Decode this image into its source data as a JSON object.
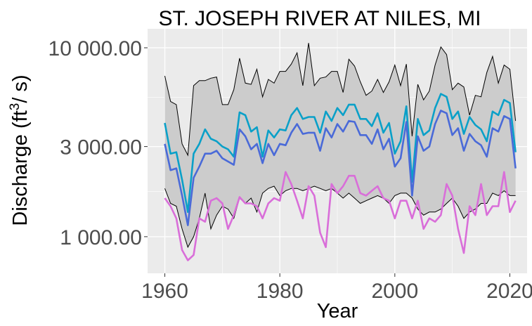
{
  "chart_data": {
    "type": "line",
    "title": "ST. JOSEPH RIVER AT NILES, MI",
    "xlabel": "Year",
    "ylabel_main": "Discharge (ft",
    "ylabel_sup": "3",
    "ylabel_end": "/ s)",
    "y_scale": "log10",
    "xlim": [
      1957,
      2023
    ],
    "ylim": [
      640,
      12600
    ],
    "x_ticks": [
      1960,
      1980,
      2000,
      2020
    ],
    "x_tick_labels": [
      "1960",
      "1980",
      "2000",
      "2020"
    ],
    "y_ticks": [
      1000,
      3000,
      10000
    ],
    "y_tick_labels": [
      "1 000.00",
      "3 000.00",
      "10 000.00"
    ],
    "grid": true,
    "legend": "none",
    "x": [
      1960,
      1961,
      1962,
      1963,
      1964,
      1965,
      1966,
      1967,
      1968,
      1969,
      1970,
      1971,
      1972,
      1973,
      1974,
      1975,
      1976,
      1977,
      1978,
      1979,
      1980,
      1981,
      1982,
      1983,
      1984,
      1985,
      1986,
      1987,
      1988,
      1989,
      1990,
      1991,
      1992,
      1993,
      1994,
      1995,
      1996,
      1997,
      1998,
      1999,
      2000,
      2001,
      2002,
      2003,
      2004,
      2005,
      2006,
      2007,
      2008,
      2009,
      2010,
      2011,
      2012,
      2013,
      2014,
      2015,
      2016,
      2017,
      2018,
      2019,
      2020,
      2021
    ],
    "band": {
      "upper": [
        7100,
        5200,
        5000,
        3100,
        2700,
        6300,
        6700,
        6700,
        6900,
        7000,
        5000,
        5000,
        6000,
        8800,
        6500,
        6400,
        7700,
        5500,
        6800,
        6500,
        7500,
        7500,
        8200,
        9400,
        6300,
        10600,
        6300,
        6900,
        7000,
        7500,
        7500,
        5800,
        8700,
        8000,
        6600,
        5600,
        5900,
        6800,
        5800,
        6600,
        8100,
        6300,
        8200,
        3400,
        6400,
        5300,
        5900,
        8100,
        10100,
        9200,
        6000,
        6500,
        6200,
        4400,
        5600,
        5500,
        7400,
        9000,
        6500,
        8100,
        7700,
        4100
      ],
      "lower": [
        1800,
        1500,
        1450,
        1100,
        880,
        1000,
        1250,
        1700,
        1100,
        1300,
        1450,
        1400,
        1250,
        1600,
        1500,
        1600,
        1350,
        1700,
        1800,
        1850,
        1650,
        1750,
        1800,
        1800,
        1750,
        1800,
        1850,
        1800,
        1750,
        1800,
        1700,
        1600,
        1700,
        1600,
        1500,
        1550,
        1600,
        1650,
        1600,
        1500,
        1650,
        1700,
        1700,
        1600,
        1400,
        1300,
        1350,
        1350,
        1400,
        1500,
        1600,
        1450,
        1250,
        1350,
        1400,
        1500,
        1500,
        1700,
        1650,
        1750,
        1650,
        1650
      ]
    },
    "series": [
      {
        "color": "#0aa0c8",
        "values": [
          4000,
          2750,
          2800,
          2000,
          1350,
          2750,
          3100,
          3700,
          3300,
          3200,
          3000,
          2900,
          2650,
          4550,
          4400,
          3600,
          3800,
          2650,
          3650,
          3350,
          3700,
          3650,
          4400,
          4800,
          4200,
          4300,
          4300,
          3550,
          4600,
          4100,
          4800,
          4400,
          5000,
          5000,
          4200,
          4200,
          3850,
          4500,
          3550,
          4000,
          2750,
          3200,
          4900,
          1950,
          4200,
          3450,
          3650,
          4800,
          5700,
          5500,
          4200,
          4600,
          3500,
          4300,
          3900,
          3700,
          3200,
          4600,
          4400,
          5300,
          5100,
          2800
        ]
      },
      {
        "color": "#4a6ad8",
        "values": [
          3100,
          2250,
          2300,
          1650,
          1150,
          2050,
          2350,
          2750,
          2750,
          2850,
          2600,
          2500,
          2400,
          3700,
          3400,
          2900,
          3100,
          2450,
          3100,
          2700,
          3100,
          3050,
          3550,
          3950,
          3500,
          3550,
          3550,
          2850,
          3750,
          3350,
          3950,
          3600,
          4100,
          4050,
          3450,
          3450,
          3100,
          3700,
          2900,
          3300,
          2350,
          2600,
          4050,
          1650,
          3400,
          2850,
          3000,
          3950,
          4650,
          4500,
          3450,
          3750,
          2850,
          3500,
          3200,
          3050,
          2650,
          3750,
          3600,
          4350,
          4200,
          2300
        ]
      },
      {
        "color": "#d96ed9",
        "values": [
          1600,
          1450,
          1250,
          850,
          750,
          800,
          1250,
          1200,
          1550,
          1600,
          1500,
          1100,
          1300,
          1620,
          1500,
          1500,
          1450,
          1250,
          1500,
          1600,
          1550,
          2200,
          1900,
          1550,
          1250,
          1850,
          1650,
          1050,
          880,
          1900,
          1700,
          1850,
          2100,
          2100,
          1700,
          1650,
          1750,
          1850,
          1600,
          1550,
          1250,
          1550,
          1550,
          1250,
          1550,
          1100,
          1250,
          1200,
          1300,
          1900,
          1650,
          1100,
          820,
          1450,
          1300,
          1900,
          1300,
          1450,
          1450,
          2200,
          1350,
          1550
        ]
      }
    ]
  }
}
